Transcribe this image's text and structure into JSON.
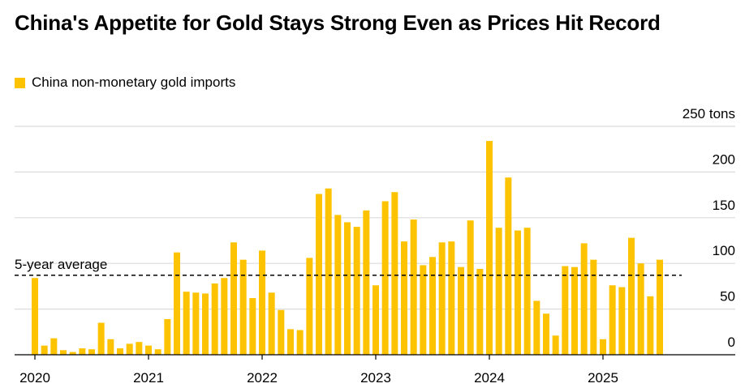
{
  "chart_data": {
    "type": "bar",
    "title": "China's Appetite for Gold Stays Strong Even as Prices Hit Record",
    "legend": [
      {
        "label": "China non-monetary gold imports",
        "color": "#fdc300"
      }
    ],
    "xlabel": "",
    "ylabel": "tons",
    "ylim": [
      0,
      250
    ],
    "yticks": [
      0,
      50,
      100,
      150,
      200,
      250
    ],
    "ytick_labels": [
      "0",
      "50",
      "100",
      "150",
      "200",
      "250 tons"
    ],
    "xtick_labels": [
      "2020",
      "2021",
      "2022",
      "2023",
      "2024",
      "2025"
    ],
    "start": "2020-01",
    "values": [
      84,
      10,
      18,
      5,
      3,
      7,
      6,
      35,
      17,
      7,
      12,
      14,
      10,
      6,
      39,
      112,
      69,
      68,
      67,
      78,
      84,
      123,
      104,
      62,
      114,
      68,
      49,
      28,
      27,
      106,
      176,
      182,
      153,
      145,
      140,
      158,
      76,
      168,
      178,
      124,
      148,
      98,
      107,
      123,
      124,
      96,
      147,
      94,
      234,
      139,
      194,
      136,
      139,
      59,
      45,
      21,
      97,
      96,
      122,
      104,
      17,
      76,
      74,
      128,
      100,
      64,
      104
    ],
    "reference_line": {
      "label": "5-year average",
      "value": 87
    },
    "grid": true,
    "legend_position": "top-left"
  }
}
